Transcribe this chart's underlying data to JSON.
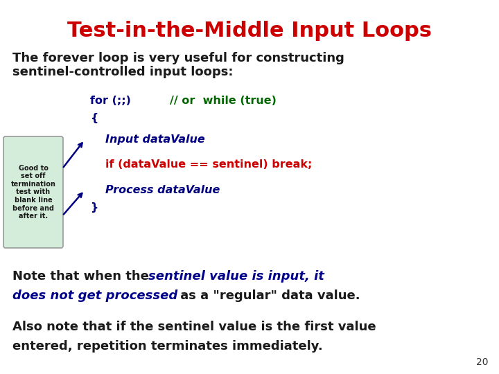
{
  "title": "Test-in-the-Middle Input Loops",
  "title_color": "#CC0000",
  "title_fontsize": 22,
  "bg_color": "#FFFFFF",
  "subtitle_line1": "The forever loop is very useful for constructing",
  "subtitle_line2": "sentinel-controlled input loops:",
  "subtitle_color": "#1a1a1a",
  "subtitle_fontsize": 13,
  "code_color_green": "#006600",
  "code_color_red": "#CC0000",
  "code_color_navy": "#000080",
  "code_color_black": "#1a1a1a",
  "code_fontsize": 11.5,
  "note1_color": "#1a1a1a",
  "note1_bold_color": "#00008B",
  "note_fontsize": 13,
  "note2_fontsize": 13,
  "callout_text": "Good to\nset off\ntermination\ntest with\nblank line\nbefore and\nafter it.",
  "callout_color": "#1a1a1a",
  "callout_bg": "#d4edda",
  "callout_border": "#999999",
  "arrow_color": "#000080",
  "page_number": "20",
  "page_number_color": "#333333"
}
